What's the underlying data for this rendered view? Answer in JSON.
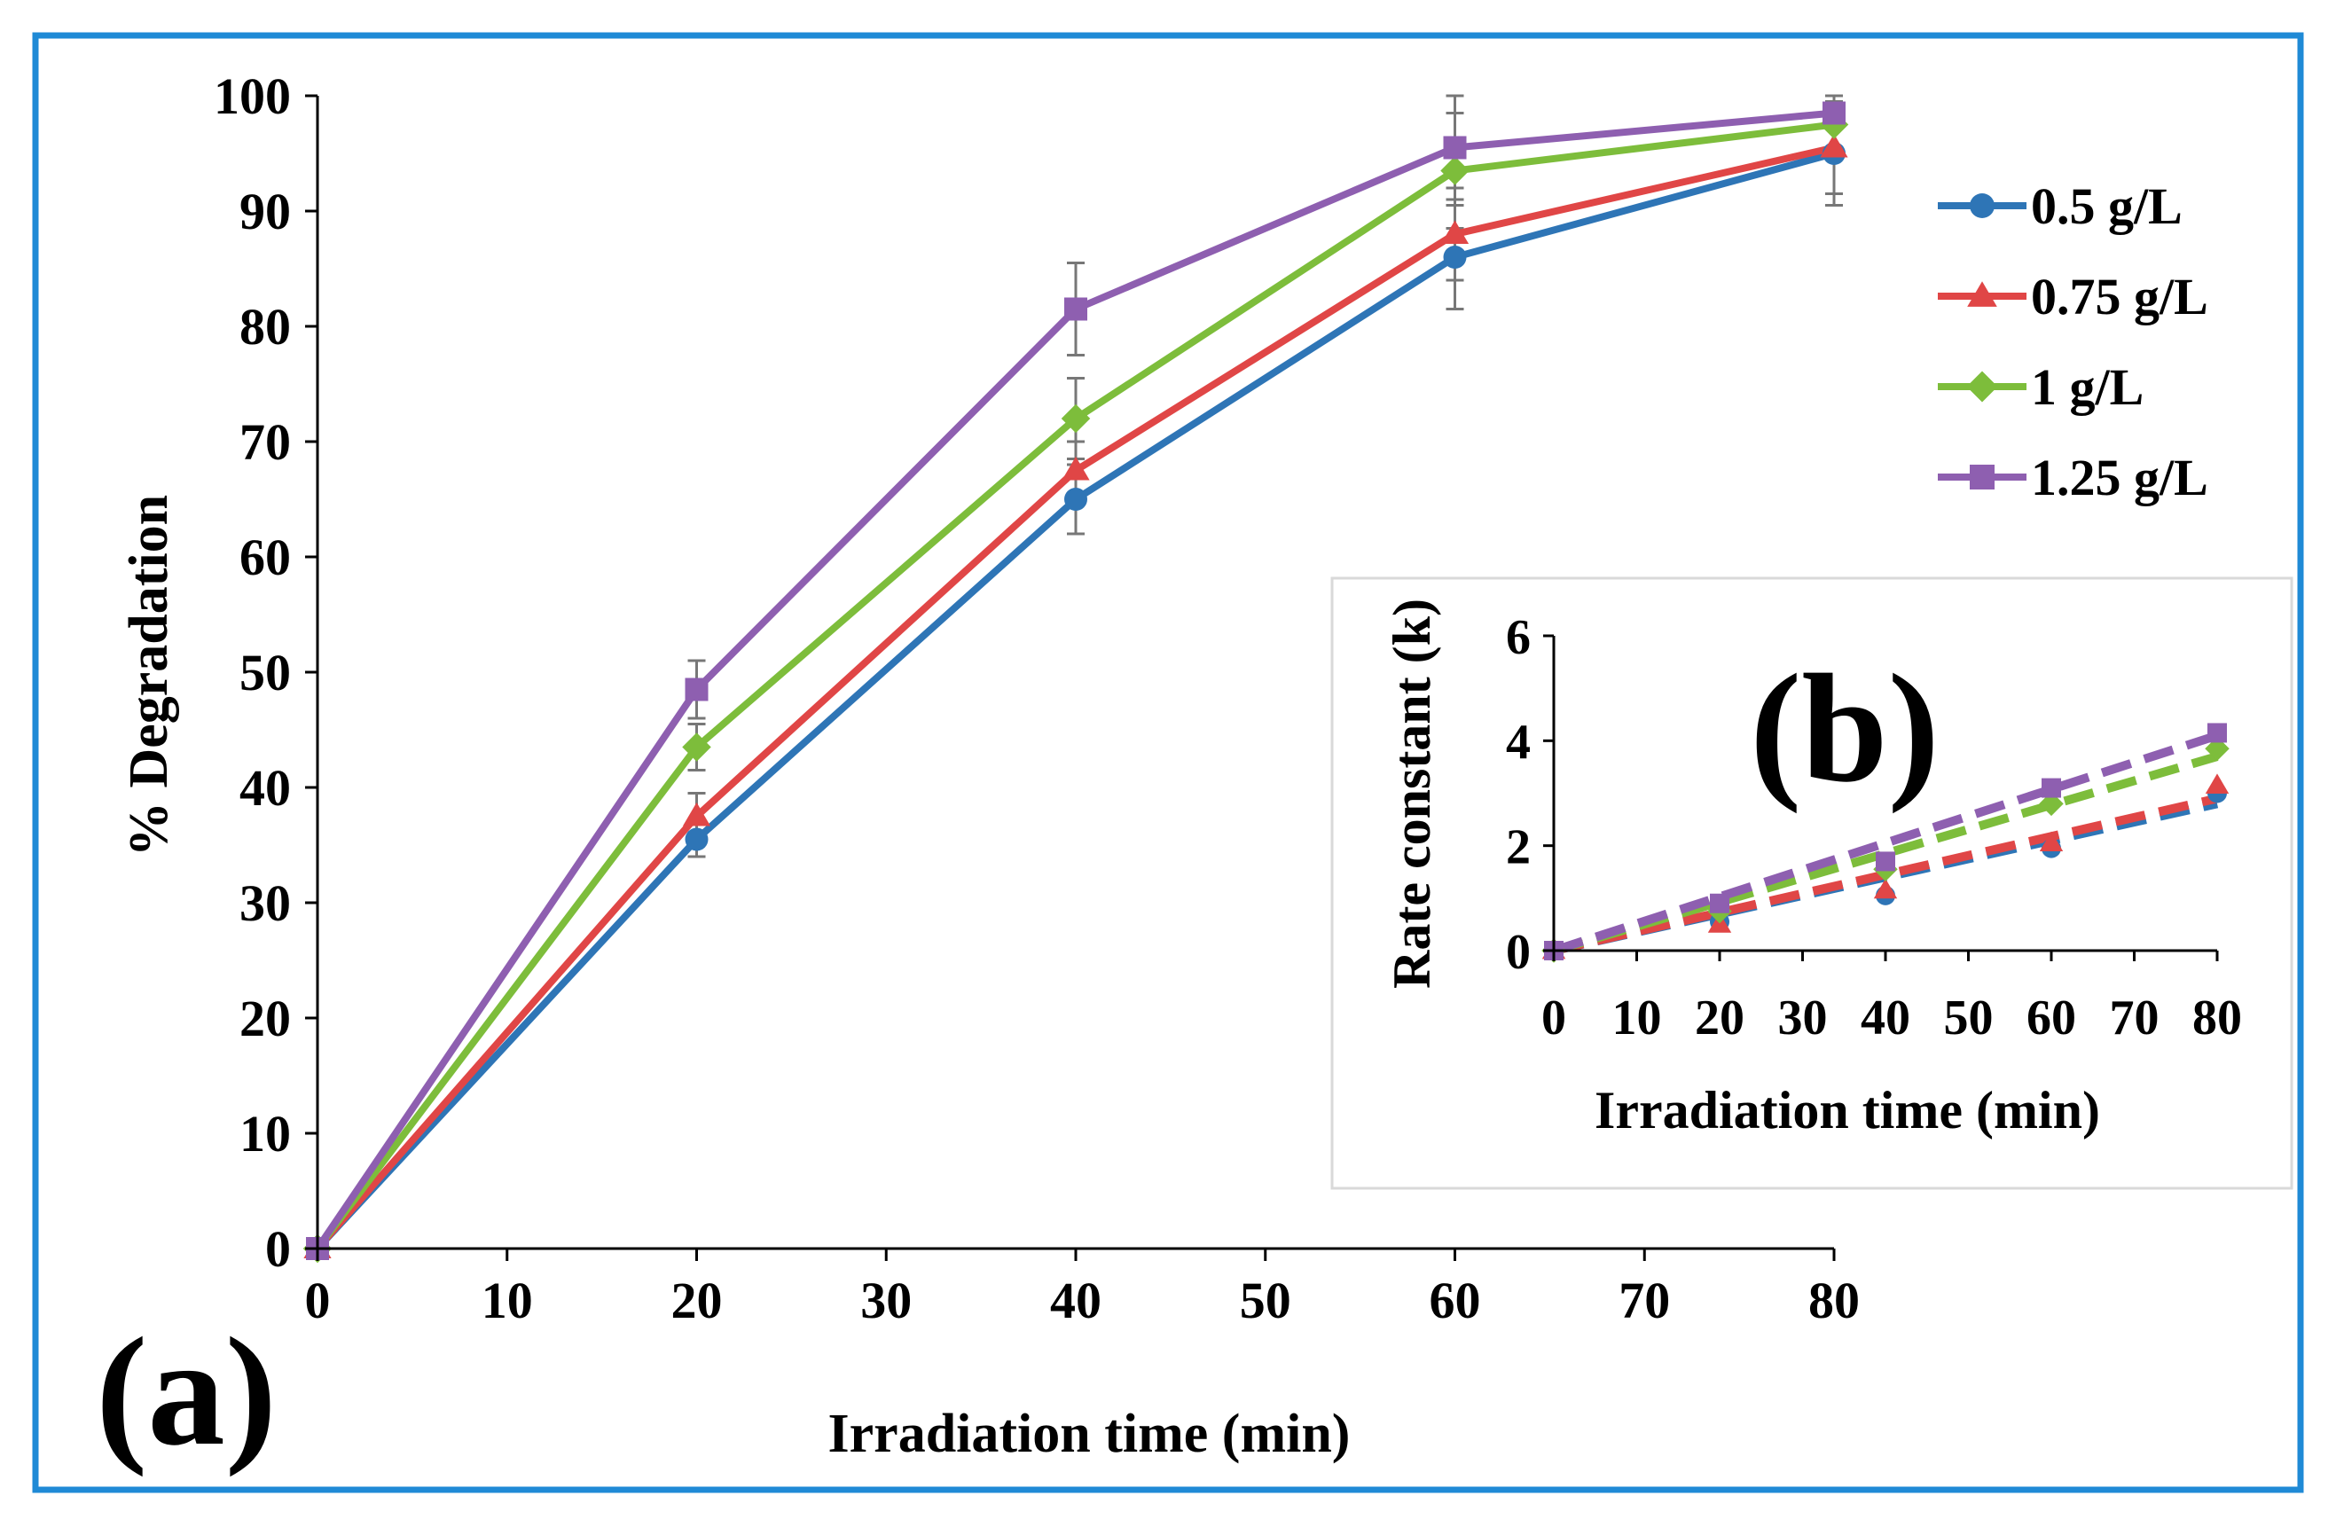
{
  "colors": {
    "frame": "#1f8ad6",
    "axis": "#000000",
    "error_bar": "#777777",
    "inset_border": "#d9d9d9"
  },
  "chart_data": [
    {
      "id": "main",
      "type": "line",
      "panel_label": "(a)",
      "xlabel": "Irradiation time (min)",
      "ylabel": "% Degradation",
      "xlim": [
        0,
        80
      ],
      "ylim": [
        0,
        100
      ],
      "xticks": [
        0,
        10,
        20,
        30,
        40,
        50,
        60,
        70,
        80
      ],
      "yticks": [
        0,
        10,
        20,
        30,
        40,
        50,
        60,
        70,
        80,
        90,
        100
      ],
      "grid": false,
      "legend_position": "right",
      "x": [
        0,
        20,
        40,
        60,
        80
      ],
      "series": [
        {
          "name": "0.5 g/L",
          "color": "#2e75b6",
          "marker": "circle",
          "values": [
            0,
            35.5,
            65,
            86,
            95
          ],
          "errors": [
            0,
            1.5,
            3,
            4.5,
            4.5
          ]
        },
        {
          "name": "0.75 g/L",
          "color": "#e04646",
          "marker": "triangle",
          "values": [
            0,
            37.5,
            67.5,
            88,
            95.5
          ],
          "errors": [
            0,
            2,
            2.5,
            4,
            4
          ]
        },
        {
          "name": "1 g/L",
          "color": "#7dbd3b",
          "marker": "diamond",
          "values": [
            0,
            43.5,
            72,
            93.5,
            97.5
          ],
          "errors": [
            0,
            2,
            3.5,
            5,
            2.5
          ]
        },
        {
          "name": "1.25 g/L",
          "color": "#8e5fb0",
          "marker": "square",
          "values": [
            0,
            48.5,
            81.5,
            95.5,
            98.5
          ],
          "errors": [
            0,
            2.5,
            4,
            4.5,
            1
          ]
        }
      ]
    },
    {
      "id": "inset",
      "type": "scatter",
      "panel_label": "(b)",
      "xlabel": "Irradiation time (min)",
      "ylabel": "Rate constant (k)",
      "xlim": [
        0,
        80
      ],
      "ylim": [
        0,
        6
      ],
      "xticks": [
        0,
        10,
        20,
        30,
        40,
        50,
        60,
        70,
        80
      ],
      "yticks": [
        0,
        2,
        4,
        6
      ],
      "grid": false,
      "x": [
        0,
        20,
        40,
        60,
        80
      ],
      "trendline": "linear, dashed",
      "series": [
        {
          "color": "#2e75b6",
          "marker": "circle",
          "values": [
            0,
            0.55,
            1.05,
            1.95,
            3.0
          ],
          "fit": [
            0,
            2.8
          ]
        },
        {
          "color": "#e04646",
          "marker": "triangle",
          "values": [
            0,
            0.5,
            1.15,
            2.05,
            3.15
          ],
          "fit": [
            0,
            2.9
          ]
        },
        {
          "color": "#7dbd3b",
          "marker": "diamond",
          "values": [
            0,
            0.75,
            1.55,
            2.8,
            3.85
          ],
          "fit": [
            0,
            3.7
          ]
        },
        {
          "color": "#8e5fb0",
          "marker": "square",
          "values": [
            0,
            0.9,
            1.7,
            3.1,
            4.15
          ],
          "fit": [
            0,
            4.1
          ]
        }
      ]
    }
  ]
}
